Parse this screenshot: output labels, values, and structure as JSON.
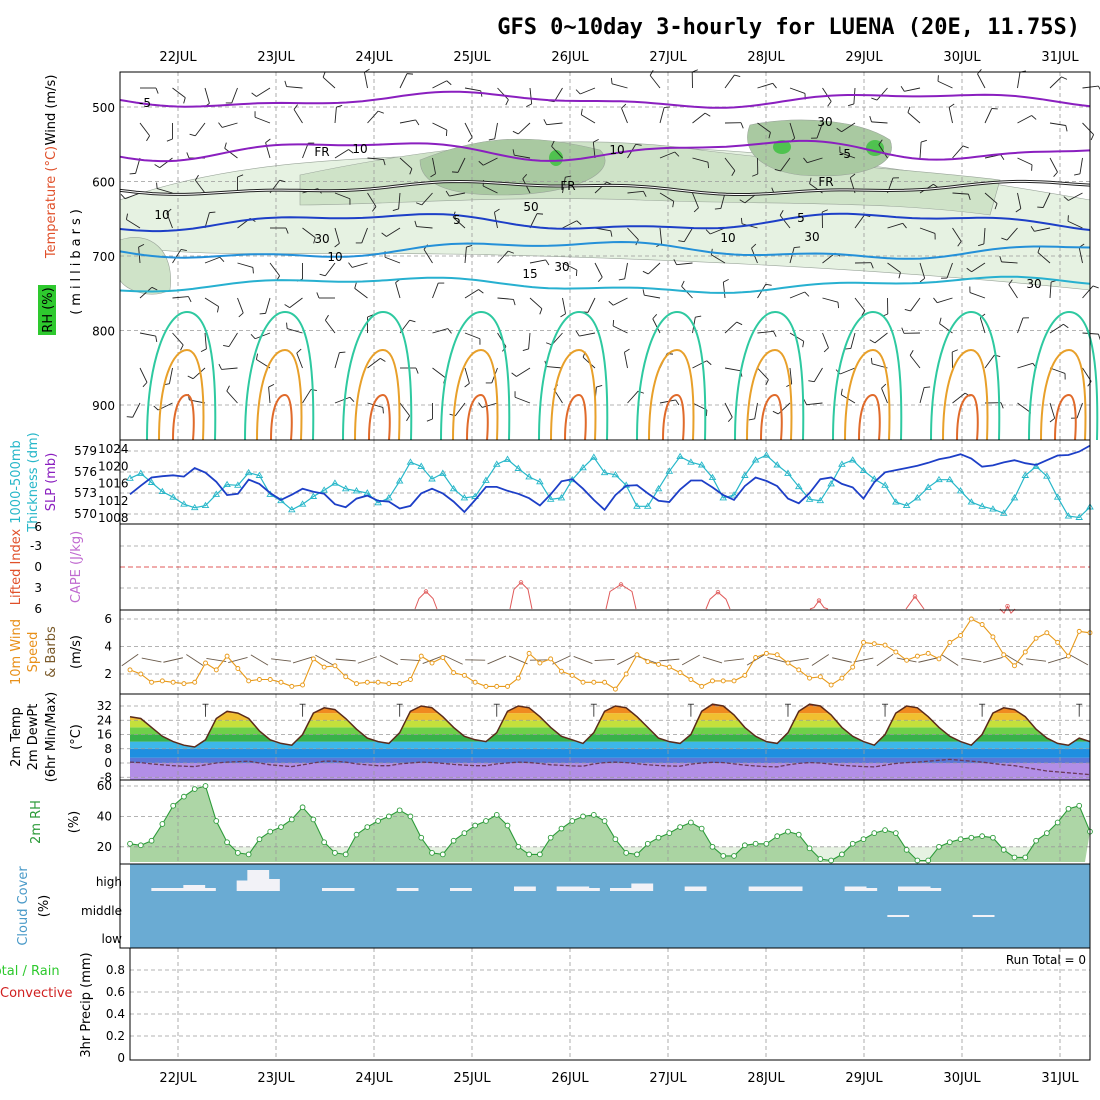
{
  "title": "GFS 0~10day 3-hourly for LUENA (20E, 11.75S)",
  "days": [
    "22JUL",
    "23JUL",
    "24JUL",
    "25JUL",
    "26JUL",
    "27JUL",
    "28JUL",
    "29JUL",
    "30JUL",
    "31JUL"
  ],
  "colors": {
    "purple": "#8a1fbf",
    "blue": "#1e4fd0",
    "cyan": "#27b7c9",
    "lightblue": "#1fa3e0",
    "green": "#2ec97a",
    "orange": "#e89a1a",
    "red": "#d02020",
    "darkblue": "#1d3fc7",
    "gray": "#777777",
    "cloud_bg": "#6eaed6",
    "rh_fill": "#b9d9b0",
    "rh_line": "#2d9b3a"
  },
  "chart_data": [
    {
      "type": "heatmap",
      "name_text": "upper-air",
      "ylabels_left": [
        "Wind (m/s)",
        "Temperature (°C)",
        "RH (%)"
      ],
      "ylabel_inner": "(millibars)",
      "yticks": [
        500,
        600,
        700,
        800,
        900
      ],
      "contour_labels": {
        "temperature": [
          "-5",
          "-5",
          "FR",
          "FR",
          "FR",
          "5",
          "5",
          "10",
          "10",
          "15"
        ],
        "rh": [
          "10",
          "30",
          "30",
          "30",
          "30",
          "50",
          "10",
          "10",
          "30"
        ]
      }
    },
    {
      "type": "line",
      "name_text": "thickness-slp",
      "ylabels": [
        "1000-500mb",
        "Thickness (dm)",
        "SLP (mb)"
      ],
      "left_ticks": [
        570,
        573,
        576,
        579
      ],
      "right_ticks": [
        1008,
        1012,
        1016,
        1020,
        1024
      ],
      "series": [
        {
          "name": "thickness",
          "values": [
            575.1,
            575.8,
            574.5,
            573.2,
            572.4,
            571.4,
            570.9,
            571.2,
            572.8,
            574.2,
            574.1,
            575.9,
            575.5,
            572.8,
            571.9,
            570.6,
            571.4,
            572.5,
            573.4,
            574.4,
            573.6,
            573.3,
            573.0,
            571.6,
            572.3,
            574.7,
            577.4,
            576.8,
            575.0,
            575.8,
            573.6,
            572.3,
            572.5,
            574.8,
            577.1,
            577.8,
            576.5,
            575.3,
            574.6,
            572.1,
            572.3,
            574.9,
            576.6,
            578.1,
            575.9,
            575.6,
            574.1,
            571.1,
            571.1,
            573.6,
            576.1,
            578.2,
            577.4,
            577.0,
            575.2,
            572.3,
            572.7,
            575.5,
            577.7,
            578.4,
            577.0,
            575.8,
            573.9,
            572.1,
            571.9,
            574.3,
            577.1,
            577.7,
            576.2,
            575.0,
            574.1,
            571.7,
            571.2,
            572.3,
            573.8,
            574.9,
            574.9,
            573.3,
            571.7,
            571.1,
            570.7,
            570.1,
            572.3,
            575.5,
            576.8,
            575.4,
            572.4,
            569.7,
            569.5,
            571.0
          ]
        },
        {
          "name": "slp",
          "values": [
            1013.5,
            1015.5,
            1017.4,
            1017.7,
            1017.9,
            1017.6,
            1019.6,
            1018.5,
            1016.4,
            1013.3,
            1013.6,
            1016.9,
            1015.9,
            1013.8,
            1012.2,
            1013.4,
            1014.8,
            1014.1,
            1013.6,
            1011.2,
            1010.5,
            1012.5,
            1013.2,
            1012.0,
            1011.8,
            1010.2,
            1010.8,
            1013.7,
            1014.8,
            1013.7,
            1011.8,
            1009.4,
            1012.2,
            1015.2,
            1015.2,
            1014.3,
            1013.6,
            1012.6,
            1010.9,
            1013.5,
            1016.5,
            1017.0,
            1014.8,
            1012.2,
            1009.9,
            1013.3,
            1015.5,
            1015.6,
            1013.7,
            1012.0,
            1011.7,
            1014.6,
            1016.7,
            1016.7,
            1015.1,
            1013.3,
            1012.2,
            1015.4,
            1017.4,
            1016.6,
            1015.4,
            1012.5,
            1011.4,
            1013.8,
            1017.0,
            1017.4,
            1015.9,
            1015.1,
            1012.5,
            1016.3,
            1018.6,
            1019.1,
            1019.6,
            1020.1,
            1020.8,
            1021.6,
            1022.1,
            1022.8,
            1021.8,
            1019.9,
            1020.2,
            1020.9,
            1021.4,
            1020.7,
            1020.3,
            1021.4,
            1022.5,
            1022.6,
            1023.4,
            1024.8
          ]
        }
      ]
    },
    {
      "type": "line",
      "name_text": "lifted-index-cape",
      "ylabels": [
        "Lifted Index",
        "CAPE (J/kg)"
      ],
      "left_ticks": [
        "-3",
        "0",
        "3",
        "6"
      ],
      "top_tick": "6",
      "series": [
        {
          "name": "li",
          "points": [
            [
              2.8,
              6
            ],
            [
              3.0,
              5.2
            ],
            [
              3.2,
              4.4
            ],
            [
              3.4,
              6
            ]
          ]
        }
      ]
    },
    {
      "type": "line",
      "name_text": "wind10m",
      "ylabels": [
        "10m Wind",
        "Speed",
        "& Barbs"
      ],
      "ylabel_unit": "(m/s)",
      "left_ticks": [
        2,
        4,
        6
      ],
      "series": [
        {
          "name": "speed",
          "values": [
            2.3,
            2.0,
            1.4,
            1.5,
            1.4,
            1.3,
            1.4,
            2.8,
            2.3,
            3.3,
            2.4,
            1.5,
            1.6,
            1.6,
            1.4,
            1.1,
            1.2,
            3.1,
            2.5,
            2.6,
            1.8,
            1.3,
            1.4,
            1.4,
            1.3,
            1.3,
            1.6,
            3.3,
            2.8,
            3.2,
            2.1,
            1.9,
            1.4,
            1.1,
            1.1,
            1.1,
            1.7,
            3.5,
            2.8,
            3.1,
            2.2,
            1.9,
            1.4,
            1.4,
            1.4,
            0.9,
            2.0,
            3.4,
            2.9,
            2.7,
            2.5,
            2.1,
            1.6,
            1.1,
            1.5,
            1.5,
            1.5,
            1.9,
            3.2,
            3.5,
            3.4,
            2.8,
            2.3,
            1.7,
            1.8,
            1.2,
            1.7,
            2.5,
            4.3,
            4.2,
            4.1,
            3.6,
            3.0,
            3.3,
            3.5,
            3.1,
            4.3,
            4.8,
            6.0,
            5.6,
            4.7,
            3.4,
            2.6,
            3.6,
            4.6,
            5.0,
            4.3,
            3.3,
            5.1,
            5.0
          ]
        }
      ]
    },
    {
      "type": "area",
      "name_text": "temp2m",
      "ylabels": [
        "2m Temp",
        "2m DewPt",
        "(6hr Min/Max)"
      ],
      "ylabel_unit": "(°C)",
      "left_ticks": [
        "-8",
        "0",
        "8",
        "16",
        "24",
        "32"
      ],
      "series": [
        {
          "name": "temp",
          "values": [
            26,
            25,
            20,
            15,
            12,
            10,
            9,
            13,
            25,
            29,
            28,
            25,
            18,
            13,
            11,
            10,
            16,
            28,
            31,
            30,
            25,
            19,
            14,
            12,
            11,
            17,
            29,
            32,
            31,
            26,
            20,
            15,
            13,
            12,
            17,
            29,
            32,
            31,
            26,
            20,
            15,
            13,
            11,
            17,
            29,
            32,
            31,
            26,
            20,
            14,
            12,
            11,
            16,
            29,
            33,
            32,
            27,
            20,
            15,
            12,
            11,
            17,
            29,
            33,
            32,
            27,
            20,
            15,
            12,
            10,
            16,
            28,
            32,
            31,
            26,
            20,
            15,
            12,
            10,
            16,
            28,
            31,
            30,
            26,
            19,
            14,
            11,
            10,
            14,
            12
          ]
        },
        {
          "name": "dewpt",
          "values": [
            0.5,
            0.2,
            -0.5,
            -1,
            -1.5,
            -1.8,
            -2,
            -1,
            0,
            0.5,
            0.8,
            1,
            0,
            -1,
            -1.5,
            -2,
            -1,
            0,
            1,
            1,
            0.5,
            -0.5,
            -1,
            -1.5,
            -1.5,
            -0.5,
            0,
            0.5,
            0.3,
            -0.2,
            -0.8,
            -1.2,
            -1.5,
            -1.5,
            -0.5,
            0,
            0.5,
            0.3,
            -0.3,
            -1,
            -1.3,
            -1.6,
            -1.8,
            -0.5,
            0.2,
            0.5,
            0.2,
            -0.4,
            -1,
            -1.4,
            -1.7,
            -1.8,
            -0.6,
            0,
            0.4,
            0.2,
            -0.5,
            -1.2,
            -1.7,
            -2,
            -2.2,
            -1,
            -0.2,
            0.2,
            0,
            -0.7,
            -1.3,
            -1.7,
            -2,
            -2.2,
            -1.2,
            -0.3,
            0.2,
            0.5,
            1,
            1.5,
            2,
            1.5,
            1,
            0.5,
            -0.3,
            -1,
            -1.5,
            -2.5,
            -3.5,
            -4.5,
            -5,
            -5.5,
            -6,
            -6.5
          ]
        }
      ]
    },
    {
      "type": "area",
      "name_text": "rh2m",
      "ylabels": [
        "2m RH"
      ],
      "ylabel_unit": "(%)",
      "left_ticks": [
        20,
        40,
        60
      ],
      "series": [
        {
          "name": "rh",
          "values": [
            22,
            21,
            24,
            35,
            47,
            53,
            58,
            60,
            37,
            23,
            16,
            15,
            25,
            30,
            33,
            38,
            46,
            38,
            23,
            16,
            15,
            28,
            33,
            37,
            40,
            44,
            40,
            26,
            16,
            15,
            24,
            29,
            34,
            37,
            41,
            34,
            20,
            15,
            15,
            26,
            32,
            37,
            40,
            41,
            37,
            25,
            16,
            15,
            22,
            26,
            29,
            33,
            36,
            32,
            20,
            14,
            14,
            21,
            22,
            22,
            27,
            30,
            28,
            19,
            12,
            11,
            15,
            22,
            25,
            29,
            31,
            29,
            18,
            11,
            11,
            20,
            23,
            25,
            26,
            27,
            26,
            18,
            13,
            13,
            24,
            29,
            36,
            45,
            47,
            30
          ]
        }
      ]
    },
    {
      "type": "heatmap",
      "name_text": "cloud",
      "ylabels": [
        "Cloud Cover"
      ],
      "ylabel_unit": "(%)",
      "yticks": [
        "high",
        "middle",
        "low"
      ],
      "high": [
        0,
        0,
        2,
        2,
        2,
        4,
        4,
        2,
        0,
        0,
        7,
        14,
        14,
        8,
        0,
        0,
        0,
        0,
        2,
        2,
        2,
        0,
        0,
        0,
        0,
        2,
        2,
        0,
        0,
        0,
        2,
        2,
        0,
        0,
        0,
        0,
        3,
        3,
        0,
        0,
        3,
        3,
        3,
        2,
        0,
        2,
        2,
        5,
        5,
        0,
        0,
        0,
        3,
        3,
        0,
        0,
        0,
        0,
        3,
        3,
        3,
        3,
        3,
        0,
        0,
        0,
        0,
        3,
        3,
        2,
        0,
        0,
        3,
        3,
        3,
        2,
        0,
        0,
        0,
        0,
        0,
        0,
        0,
        0,
        0,
        0,
        0,
        0,
        0,
        0
      ],
      "middle": [
        0,
        0,
        0,
        0,
        0,
        0,
        0,
        0,
        0,
        0,
        0,
        0,
        0,
        0,
        0,
        0,
        0,
        0,
        0,
        0,
        0,
        0,
        0,
        0,
        0,
        0,
        0,
        0,
        0,
        0,
        0,
        0,
        0,
        0,
        0,
        0,
        0,
        0,
        0,
        0,
        0,
        0,
        0,
        0,
        0,
        0,
        0,
        0,
        0,
        0,
        0,
        0,
        0,
        0,
        0,
        0,
        0,
        0,
        0,
        0,
        0,
        0,
        0,
        0,
        0,
        0,
        0,
        0,
        0,
        0,
        0,
        2,
        2,
        0,
        0,
        0,
        0,
        0,
        0,
        2,
        2,
        0,
        0,
        0,
        0,
        0,
        0,
        0,
        0,
        0
      ]
    },
    {
      "type": "bar",
      "name_text": "precip",
      "ylabels": [
        "Total / Rain",
        "Convective"
      ],
      "ylabel_unit": "3hr Precip (mm)",
      "left_ticks": [
        "0",
        "0.2",
        "0.4",
        "0.6",
        "0.8"
      ],
      "values": [],
      "run_total_label": "Run Total = 0"
    }
  ]
}
